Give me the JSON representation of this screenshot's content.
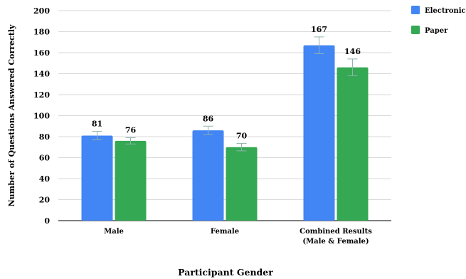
{
  "chart_data": {
    "type": "bar",
    "title": "",
    "categories": [
      [
        "Male"
      ],
      [
        "Female"
      ],
      [
        "Combined Results",
        "(Male & Female)"
      ]
    ],
    "series": [
      {
        "name": "Electronic",
        "color": "#4285f4",
        "values": [
          81,
          86,
          167
        ],
        "error": [
          4,
          4,
          8
        ],
        "labels": [
          "81",
          "86",
          "167"
        ]
      },
      {
        "name": "Paper",
        "color": "#34a853",
        "values": [
          76,
          70,
          146
        ],
        "error": [
          3,
          3.5,
          8
        ],
        "labels": [
          "76",
          "70",
          "146"
        ]
      }
    ],
    "xlabel": "Participant Gender",
    "ylabel": "Number of Questions Answered Correctly",
    "ylim": [
      0,
      200
    ],
    "yticks": [
      0,
      20,
      40,
      60,
      80,
      100,
      120,
      140,
      160,
      180,
      200
    ],
    "grid": true,
    "legend_position": "top-right"
  }
}
